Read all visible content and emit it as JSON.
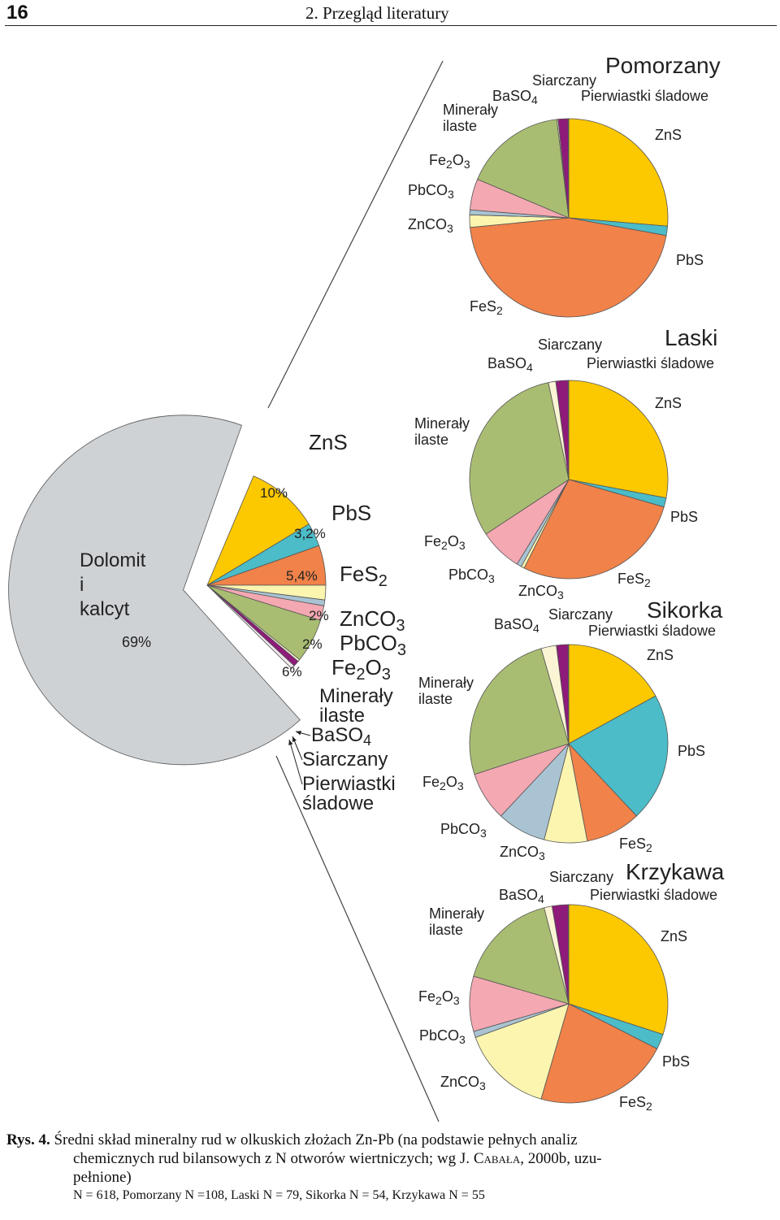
{
  "header": {
    "page_number": "16",
    "section_title": "2. Przegląd literatury"
  },
  "colors": {
    "dolomit": "#cfd2d5",
    "zns": "#fcc800",
    "pbs": "#4bbcc8",
    "fes2": "#f0824a",
    "znco3": "#fbf5b0",
    "pbco3": "#a9c3d2",
    "fe2o3": "#f4a8b2",
    "mineraly": "#a9bd72",
    "baso4": "#fbf5d6",
    "siarczany": "#8e1b7a",
    "pierwiastki": "#f2e8f0",
    "outline": "#555555"
  },
  "chart_data": [
    {
      "type": "pie",
      "title": "",
      "slices": [
        {
          "key": "dolomit",
          "label": "Dolomit i kalcyt",
          "value": 69,
          "value_label": "69%"
        },
        {
          "key": "zns",
          "label": "ZnS",
          "value": 10,
          "value_label": "10%"
        },
        {
          "key": "pbs",
          "label": "PbS",
          "value": 3.2,
          "value_label": "3,2%"
        },
        {
          "key": "fes2",
          "label": "FeS2",
          "value": 5.4,
          "value_label": "5,4%"
        },
        {
          "key": "znco3",
          "label": "ZnCO3",
          "value": 2,
          "value_label": "2%"
        },
        {
          "key": "pbco3",
          "label": "PbCO3",
          "value": 0.8,
          "value_label": ""
        },
        {
          "key": "fe2o3",
          "label": "Fe2O3",
          "value": 2,
          "value_label": "2%"
        },
        {
          "key": "mineraly",
          "label": "Minerały ilaste",
          "value": 6,
          "value_label": "6%"
        },
        {
          "key": "baso4",
          "label": "BaSO4",
          "value": 0.3,
          "value_label": ""
        },
        {
          "key": "siarczany",
          "label": "Siarczany",
          "value": 0.8,
          "value_label": ""
        },
        {
          "key": "pierwiastki",
          "label": "Pierwiastki śladowe",
          "value": 0.5,
          "value_label": ""
        }
      ]
    },
    {
      "type": "pie",
      "title": "Pomorzany",
      "slices": [
        {
          "key": "zns",
          "label": "ZnS",
          "value": 26
        },
        {
          "key": "pbs",
          "label": "PbS",
          "value": 1.5
        },
        {
          "key": "fes2",
          "label": "FeS2",
          "value": 45
        },
        {
          "key": "znco3",
          "label": "ZnCO3",
          "value": 2
        },
        {
          "key": "pbco3",
          "label": "PbCO3",
          "value": 0.8
        },
        {
          "key": "fe2o3",
          "label": "Fe2O3",
          "value": 5
        },
        {
          "key": "mineraly",
          "label": "Minerały ilaste",
          "value": 16.5
        },
        {
          "key": "baso4",
          "label": "BaSO4",
          "value": 0.2
        },
        {
          "key": "siarczany",
          "label": "Siarczany",
          "value": 1.6
        },
        {
          "key": "pierwiastki",
          "label": "Pierwiastki śladowe",
          "value": 0.1
        }
      ]
    },
    {
      "type": "pie",
      "title": "Laski",
      "slices": [
        {
          "key": "zns",
          "label": "ZnS",
          "value": 28
        },
        {
          "key": "pbs",
          "label": "PbS",
          "value": 1.5
        },
        {
          "key": "fes2",
          "label": "FeS2",
          "value": 28
        },
        {
          "key": "znco3",
          "label": "ZnCO3",
          "value": 0.5
        },
        {
          "key": "pbco3",
          "label": "PbCO3",
          "value": 0.8
        },
        {
          "key": "fe2o3",
          "label": "Fe2O3",
          "value": 7
        },
        {
          "key": "mineraly",
          "label": "Minerały ilaste",
          "value": 31
        },
        {
          "key": "baso4",
          "label": "BaSO4",
          "value": 1.2
        },
        {
          "key": "siarczany",
          "label": "Siarczany",
          "value": 2
        },
        {
          "key": "pierwiastki",
          "label": "Pierwiastki śladowe",
          "value": 0.1
        }
      ]
    },
    {
      "type": "pie",
      "title": "Sikorka",
      "slices": [
        {
          "key": "zns",
          "label": "ZnS",
          "value": 17
        },
        {
          "key": "pbs",
          "label": "PbS",
          "value": 21
        },
        {
          "key": "fes2",
          "label": "FeS2",
          "value": 9
        },
        {
          "key": "znco3",
          "label": "ZnCO3",
          "value": 7
        },
        {
          "key": "pbco3",
          "label": "PbCO3",
          "value": 8
        },
        {
          "key": "fe2o3",
          "label": "Fe2O3",
          "value": 8
        },
        {
          "key": "mineraly",
          "label": "Minerały ilaste",
          "value": 25.5
        },
        {
          "key": "baso4",
          "label": "BaSO4",
          "value": 2.5
        },
        {
          "key": "siarczany",
          "label": "Siarczany",
          "value": 1.9
        },
        {
          "key": "pierwiastki",
          "label": "Pierwiastki śladowe",
          "value": 0.1
        }
      ]
    },
    {
      "type": "pie",
      "title": "Krzykawa",
      "slices": [
        {
          "key": "zns",
          "label": "ZnS",
          "value": 30
        },
        {
          "key": "pbs",
          "label": "PbS",
          "value": 2.5
        },
        {
          "key": "fes2",
          "label": "FeS2",
          "value": 22
        },
        {
          "key": "znco3",
          "label": "ZnCO3",
          "value": 15
        },
        {
          "key": "pbco3",
          "label": "PbCO3",
          "value": 1
        },
        {
          "key": "fe2o3",
          "label": "Fe2O3",
          "value": 9
        },
        {
          "key": "mineraly",
          "label": "Minerały ilaste",
          "value": 16.5
        },
        {
          "key": "baso4",
          "label": "BaSO4",
          "value": 1.3
        },
        {
          "key": "siarczany",
          "label": "Siarczany",
          "value": 2.6
        },
        {
          "key": "pierwiastki",
          "label": "Pierwiastki śladowe",
          "value": 0.1
        }
      ]
    }
  ],
  "caption": {
    "label": "Rys. 4.",
    "text_line1": "Średni skład mineralny rud w olkuskich złożach Zn-Pb (na podstawie pełnych analiz",
    "text_line2": "chemicznych rud bilansowych z N otworów wiertniczych; wg J.",
    "author": "Cabała",
    "text_after_author": ", 2000b, uzu-",
    "text_line3": "pełnione)",
    "note": "N = 618, Pomorzany N =108, Laski N = 79, Sikorka N = 54, Krzykawa N = 55"
  }
}
